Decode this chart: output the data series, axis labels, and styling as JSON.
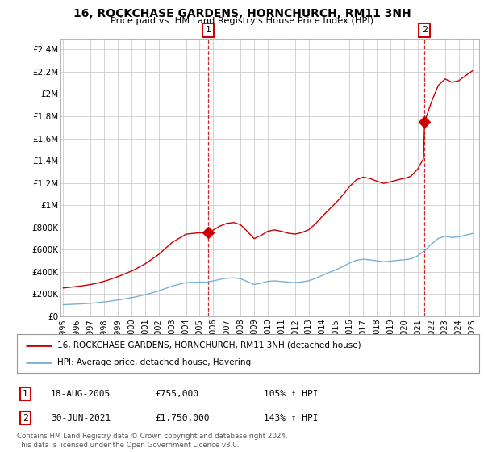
{
  "title": "16, ROCKCHASE GARDENS, HORNCHURCH, RM11 3NH",
  "subtitle": "Price paid vs. HM Land Registry's House Price Index (HPI)",
  "ylim": [
    0,
    2500000
  ],
  "yticks": [
    0,
    200000,
    400000,
    600000,
    800000,
    1000000,
    1200000,
    1400000,
    1600000,
    1800000,
    2000000,
    2200000,
    2400000
  ],
  "ytick_labels": [
    "£0",
    "£200K",
    "£400K",
    "£600K",
    "£800K",
    "£1M",
    "£1.2M",
    "£1.4M",
    "£1.6M",
    "£1.8M",
    "£2M",
    "£2.2M",
    "£2.4M"
  ],
  "xlim_start": 1995.0,
  "xlim_end": 2025.5,
  "xticks": [
    1995,
    1996,
    1997,
    1998,
    1999,
    2000,
    2001,
    2002,
    2003,
    2004,
    2005,
    2006,
    2007,
    2008,
    2009,
    2010,
    2011,
    2012,
    2013,
    2014,
    2015,
    2016,
    2017,
    2018,
    2019,
    2020,
    2021,
    2022,
    2023,
    2024,
    2025
  ],
  "marker1_x": 2005.63,
  "marker1_y": 755000,
  "marker1_label": "1",
  "marker1_date": "18-AUG-2005",
  "marker1_price": "£755,000",
  "marker1_hpi": "105% ↑ HPI",
  "marker2_x": 2021.5,
  "marker2_y": 1750000,
  "marker2_label": "2",
  "marker2_date": "30-JUN-2021",
  "marker2_price": "£1,750,000",
  "marker2_hpi": "143% ↑ HPI",
  "sale_color": "#cc0000",
  "hpi_color": "#7ab0d4",
  "legend_label_sale": "16, ROCKCHASE GARDENS, HORNCHURCH, RM11 3NH (detached house)",
  "legend_label_hpi": "HPI: Average price, detached house, Havering",
  "footnote": "Contains HM Land Registry data © Crown copyright and database right 2024.\nThis data is licensed under the Open Government Licence v3.0.",
  "background_color": "#ffffff",
  "plot_bg_color": "#ffffff",
  "grid_color": "#cccccc"
}
